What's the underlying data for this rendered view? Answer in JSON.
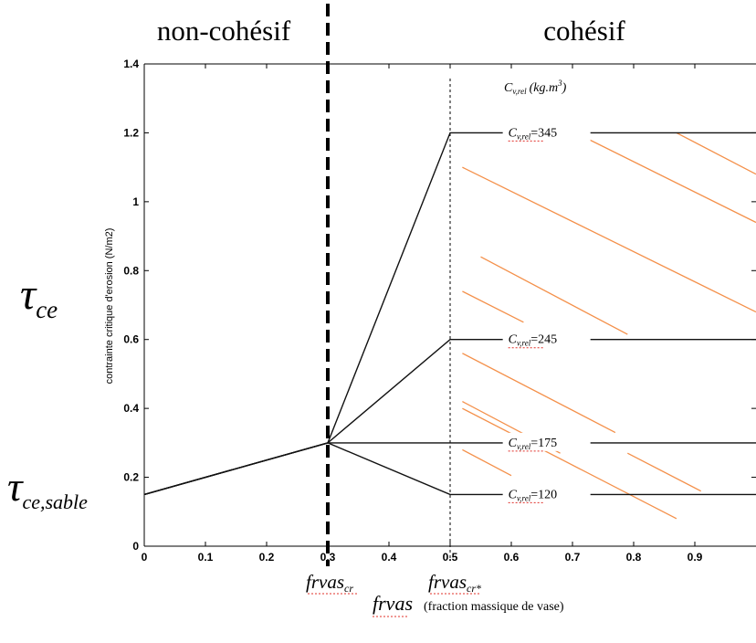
{
  "regions": {
    "left": "non-cohésif",
    "right": "cohésif"
  },
  "tau_labels": {
    "tau_ce": "τ",
    "tau_ce_sub": "ce",
    "tau_sable": "τ",
    "tau_sable_sub": "ce,sable"
  },
  "chart_data": {
    "type": "line",
    "title": "",
    "ylabel": "contrainte critique d'erosion (N/m2)",
    "xlabel": "frvas",
    "xlabel_note": "(fraction massique de vase)",
    "xlim": [
      0,
      1
    ],
    "ylim": [
      0,
      1.4
    ],
    "x_ticks": [
      0,
      0.1,
      0.2,
      0.3,
      0.4,
      0.5,
      0.6,
      0.7,
      0.8,
      0.9
    ],
    "x_tick_labels": [
      "0",
      "0.1",
      "0.2",
      "0.3",
      "0.4",
      "0.5",
      "0.6",
      "0.7",
      "0.8",
      "0.9"
    ],
    "y_ticks": [
      0,
      0.2,
      0.4,
      0.6,
      0.8,
      1,
      1.2,
      1.4
    ],
    "y_tick_labels": [
      "0",
      "0.2",
      "0.4",
      "0.6",
      "0.8",
      "1",
      "1.2",
      "1.4"
    ],
    "concentration_header": "C",
    "concentration_header_sub": "v,rel",
    "concentration_header_unit": "(kg.m",
    "concentration_header_exp": "3",
    "concentration_header_close": ")",
    "series": [
      {
        "name": "=345",
        "x": [
          0,
          0.3,
          0.5,
          1
        ],
        "y": [
          0.15,
          0.3,
          1.2,
          1.2
        ]
      },
      {
        "name": "=245",
        "x": [
          0,
          0.3,
          0.5,
          1
        ],
        "y": [
          0.15,
          0.3,
          0.6,
          0.6
        ]
      },
      {
        "name": "=175",
        "x": [
          0,
          0.3,
          0.5,
          1
        ],
        "y": [
          0.15,
          0.3,
          0.3,
          0.3
        ]
      },
      {
        "name": "=120",
        "x": [
          0,
          0.3,
          0.5,
          1
        ],
        "y": [
          0.15,
          0.3,
          0.15,
          0.15
        ]
      }
    ],
    "series_label_prefix": "C",
    "series_label_sub": "v,rel",
    "x_markers": [
      {
        "x": 0.3,
        "label": "frvas",
        "sub": "cr",
        "style": "bold-dashed"
      },
      {
        "x": 0.5,
        "label": "frvas",
        "sub": "cr*",
        "style": "thin-dashed"
      }
    ],
    "hatch_color": "#f4904a"
  }
}
